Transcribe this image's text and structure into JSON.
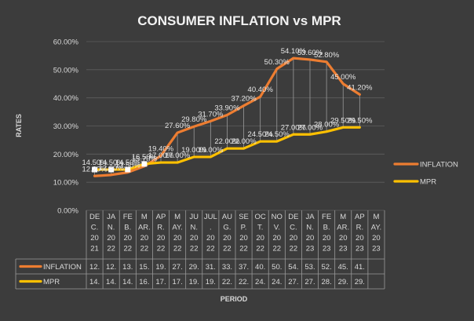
{
  "chart_data": {
    "type": "line",
    "title": "CONSUMER INFLATION vs MPR",
    "xlabel": "PERIOD",
    "ylabel": "RATES",
    "ylim": [
      0,
      60
    ],
    "ytick_values": [
      0,
      10,
      20,
      30,
      40,
      50,
      60
    ],
    "ytick_labels": [
      "0.00%",
      "10.00%",
      "20.00%",
      "30.00%",
      "40.00%",
      "50.00%",
      "60.00%"
    ],
    "grid": true,
    "legend_position": "right",
    "categories": [
      "DEC.2021",
      "JAN.2022",
      "FEB.2022",
      "MAR.2022",
      "APR.2022",
      "MAY.2022",
      "JUN.2022",
      "JUL.2022",
      "AUG.2022",
      "SEP.2022",
      "OCT.2022",
      "NOV.2022",
      "DEC.2022",
      "JAN.2023",
      "FEB.2023",
      "MAR.2023",
      "APR.2023",
      "MAY.2023"
    ],
    "category_labels": [
      [
        "DE",
        "C.",
        "20",
        "21"
      ],
      [
        "JA",
        "N.",
        "20",
        "22"
      ],
      [
        "FE",
        "B.",
        "20",
        "22"
      ],
      [
        "M",
        "AR.",
        "20",
        "22"
      ],
      [
        "AP",
        "R.",
        "20",
        "22"
      ],
      [
        "M",
        "AY.",
        "20",
        "22"
      ],
      [
        "JU",
        "N.",
        "20",
        "22"
      ],
      [
        "JUL",
        ".",
        "20",
        "22"
      ],
      [
        "AU",
        "G.",
        "20",
        "22"
      ],
      [
        "SE",
        "P.",
        "20",
        "22"
      ],
      [
        "OC",
        "T.",
        "20",
        "22"
      ],
      [
        "NO",
        "V.",
        "20",
        "22"
      ],
      [
        "DE",
        "C.",
        "20",
        "22"
      ],
      [
        "JA",
        "N.",
        "20",
        "23"
      ],
      [
        "FE",
        "B.",
        "20",
        "23"
      ],
      [
        "M",
        "AR.",
        "20",
        "23"
      ],
      [
        "AP",
        "R.",
        "20",
        "23"
      ],
      [
        "M",
        "AY.",
        "20",
        "23"
      ]
    ],
    "series": [
      {
        "name": "INFLATION",
        "color": "#ed7d31",
        "values": [
          12.2,
          12.6,
          13.5,
          15.7,
          19.4,
          27.6,
          29.8,
          31.7,
          33.9,
          37.2,
          40.4,
          50.3,
          54.1,
          53.6,
          52.8,
          45.0,
          41.2,
          null
        ],
        "data_labels": [
          "12.20%",
          "12.60%",
          "13.50%",
          "15.70%",
          "19.40%",
          "27.60%",
          "29.80%",
          "31.70%",
          "33.90%",
          "37.20%",
          "40.40%",
          "50.30%",
          "54.10%",
          "53.60%",
          "52.80%",
          "45.00%",
          "41.20%",
          ""
        ],
        "table_values": [
          "12.",
          "12.",
          "13.",
          "15.",
          "19.",
          "27.",
          "29.",
          "31.",
          "33.",
          "37.",
          "40.",
          "50.",
          "54.",
          "53.",
          "52.",
          "45.",
          "41.",
          ""
        ]
      },
      {
        "name": "MPR",
        "color": "#ffc000",
        "values": [
          14.5,
          14.5,
          14.5,
          16.5,
          17.0,
          17.0,
          19.0,
          19.0,
          22.0,
          22.0,
          24.5,
          24.5,
          27.0,
          27.0,
          28.0,
          29.5,
          29.5,
          null
        ],
        "data_labels": [
          "14.50%",
          "14.50%",
          "14.50%",
          "16.50%",
          "17.00%",
          "17.00%",
          "19.00%",
          "19.00%",
          "22.00%",
          "22.00%",
          "24.50%",
          "24.50%",
          "27.00%",
          "27.00%",
          "28.00%",
          "29.50%",
          "29.50%",
          ""
        ],
        "table_values": [
          "14.",
          "14.",
          "14.",
          "16.",
          "17.",
          "17.",
          "19.",
          "19.",
          "22.",
          "22.",
          "24.",
          "24.",
          "27.",
          "27.",
          "28.",
          "29.",
          "29.",
          ""
        ]
      }
    ]
  }
}
